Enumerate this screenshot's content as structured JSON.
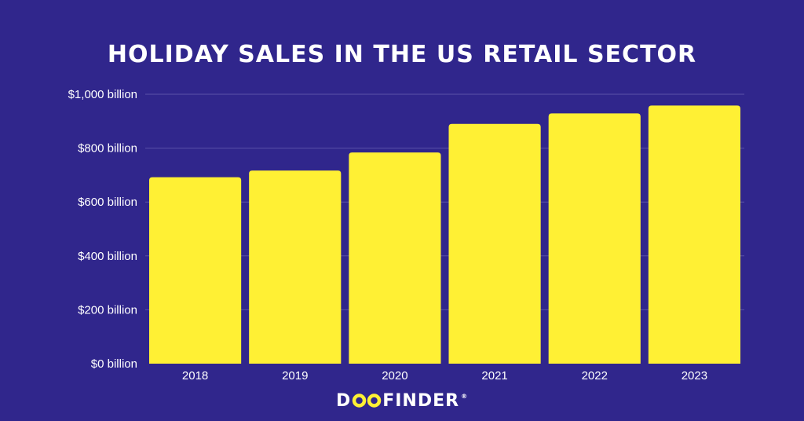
{
  "colors": {
    "background": "#30268c",
    "bar": "#fff034",
    "grid": "#5a52a8",
    "text": "#ffffff",
    "logo_accent": "#fff034"
  },
  "logo": {
    "prefix": "D",
    "suffix": "FINDER",
    "reg": "®",
    "icon": "infinity-oo-icon"
  },
  "chart_data": {
    "type": "bar",
    "title": "HOLIDAY SALES IN THE US RETAIL SECTOR",
    "categories": [
      "2018",
      "2019",
      "2020",
      "2021",
      "2022",
      "2023"
    ],
    "values": [
      692,
      717,
      784,
      890,
      929,
      958
    ],
    "ylim": [
      0,
      1000
    ],
    "yticks": [
      0,
      200,
      400,
      600,
      800,
      1000
    ],
    "ytick_labels": [
      "$0 billion",
      "$200 billion",
      "$400 billion",
      "$600 billion",
      "$800 billion",
      "$1,000 billion"
    ],
    "xlabel": "",
    "ylabel": "",
    "grid": true,
    "legend": "none"
  }
}
